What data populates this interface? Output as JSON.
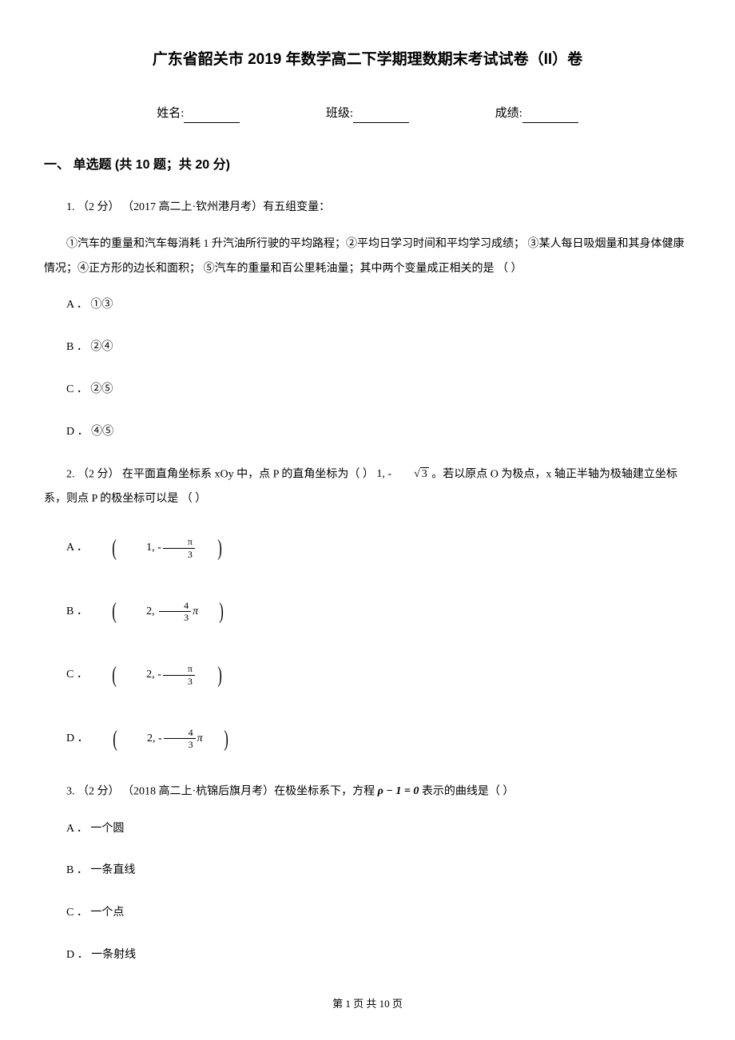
{
  "title": "广东省韶关市 2019 年数学高二下学期理数期末考试试卷（II）卷",
  "info": {
    "name_label": "姓名:",
    "class_label": "班级:",
    "score_label": "成绩:"
  },
  "section1": {
    "title": "一、 单选题 (共 10 题；共 20 分)"
  },
  "q1": {
    "number": "1. （2 分） （2017 高二上·钦州港月考）有五组变量：",
    "body": "①汽车的重量和汽车每消耗 1 升汽油所行驶的平均路程；②平均日学习时间和平均学习成绩； ③某人每日吸烟量和其身体健康情况；④正方形的边长和面积； ⑤汽车的重量和百公里耗油量；其中两个变量成正相关的是  （      ）",
    "opt_a": "A ． ①③",
    "opt_b": "B ． ②④",
    "opt_c": "C ． ②⑤",
    "opt_d": "D ． ④⑤"
  },
  "q2": {
    "number_prefix": "2. （2 分） 在平面直角坐标系 xOy 中，点 P 的直角坐标为（      ）",
    "coord_text": "1, -",
    "coord_sqrt": "3",
    "number_suffix": "。若以原点 O 为极点，x 轴正半轴为极轴建立坐标系，则点 P 的极坐标可以是                    （      ）",
    "opt_a_label": "A ．",
    "opt_a_num1": "1,",
    "opt_a_pi": "π",
    "opt_a_den": "3",
    "opt_b_label": "B ．",
    "opt_b_num1": "2,",
    "opt_b_fnum": "4",
    "opt_b_fden": "3",
    "opt_b_pi": "π",
    "opt_c_label": "C ．",
    "opt_c_num1": "2,",
    "opt_c_pi": "π",
    "opt_c_den": "3",
    "opt_d_label": "D ．",
    "opt_d_num1": "2,",
    "opt_d_fnum": "4",
    "opt_d_fden": "3",
    "opt_d_pi": "π"
  },
  "q3": {
    "number_prefix": "3. （2 分） （2018 高二上·杭锦后旗月考）在极坐标系下，方程 ",
    "formula": "ρ − 1 = 0",
    "number_suffix": " 表示的曲线是（      ）",
    "opt_a": "A ． 一个圆",
    "opt_b": "B ． 一条直线",
    "opt_c": "C ． 一个点",
    "opt_d": "D ． 一条射线"
  },
  "footer": "第 1 页 共 10 页"
}
